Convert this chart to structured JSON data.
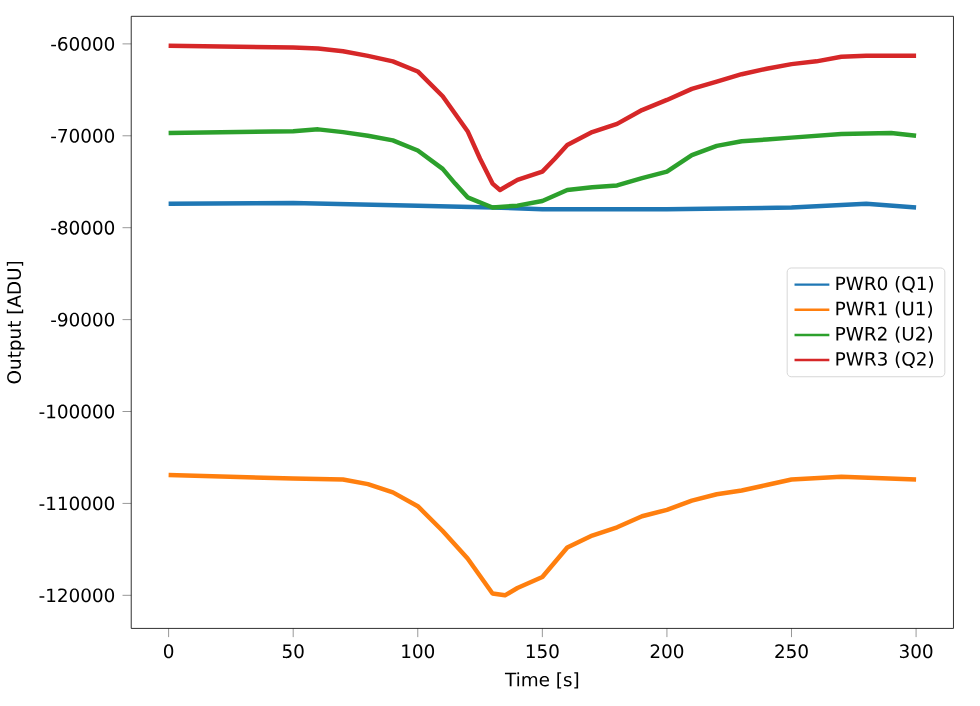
{
  "chart_data": {
    "type": "line",
    "xlabel": "Time [s]",
    "ylabel": "Output [ADU]",
    "xlim": [
      -15,
      315
    ],
    "ylim": [
      -123600,
      -57000
    ],
    "xticks": [
      0,
      50,
      100,
      150,
      200,
      250,
      300
    ],
    "yticks": [
      -120000,
      -110000,
      -100000,
      -90000,
      -80000,
      -70000,
      -60000
    ],
    "legend": "right",
    "grid": false,
    "series": [
      {
        "name": "PWR0 (Q1)",
        "color": "#1f77b4",
        "x": [
          0,
          50,
          100,
          130,
          150,
          200,
          250,
          280,
          300
        ],
        "values": [
          -77400,
          -77300,
          -77600,
          -77800,
          -78000,
          -78000,
          -77800,
          -77400,
          -77800
        ]
      },
      {
        "name": "PWR1 (U1)",
        "color": "#ff7f0e",
        "x": [
          0,
          50,
          70,
          80,
          90,
          100,
          110,
          120,
          125,
          130,
          135,
          140,
          150,
          160,
          170,
          180,
          190,
          200,
          210,
          220,
          230,
          240,
          250,
          270,
          300
        ],
        "values": [
          -106900,
          -107300,
          -107400,
          -107900,
          -108800,
          -110300,
          -113000,
          -116000,
          -117900,
          -119800,
          -120000,
          -119200,
          -118000,
          -114800,
          -113500,
          -112600,
          -111400,
          -110700,
          -109700,
          -109000,
          -108600,
          -108000,
          -107400,
          -107100,
          -107400
        ]
      },
      {
        "name": "PWR2 (U2)",
        "color": "#2ca02c",
        "x": [
          0,
          50,
          60,
          70,
          80,
          90,
          100,
          110,
          115,
          120,
          130,
          140,
          150,
          160,
          170,
          180,
          190,
          200,
          210,
          220,
          230,
          240,
          250,
          270,
          290,
          300
        ],
        "values": [
          -69700,
          -69500,
          -69300,
          -69600,
          -70000,
          -70500,
          -71600,
          -73600,
          -75200,
          -76700,
          -77800,
          -77600,
          -77100,
          -75900,
          -75600,
          -75400,
          -74600,
          -73900,
          -72100,
          -71100,
          -70600,
          -70400,
          -70200,
          -69800,
          -69700,
          -70000
        ]
      },
      {
        "name": "PWR3 (Q2)",
        "color": "#d62728",
        "x": [
          0,
          50,
          60,
          70,
          80,
          90,
          100,
          110,
          120,
          125,
          130,
          133,
          140,
          150,
          155,
          160,
          170,
          180,
          190,
          200,
          210,
          220,
          230,
          240,
          250,
          260,
          270,
          280,
          300
        ],
        "values": [
          -60200,
          -60400,
          -60500,
          -60800,
          -61300,
          -61900,
          -63000,
          -65700,
          -69500,
          -72500,
          -75200,
          -75900,
          -74800,
          -73900,
          -72500,
          -71000,
          -69600,
          -68700,
          -67200,
          -66100,
          -64900,
          -64100,
          -63300,
          -62700,
          -62200,
          -61900,
          -61400,
          -61300,
          -61300
        ]
      }
    ]
  }
}
